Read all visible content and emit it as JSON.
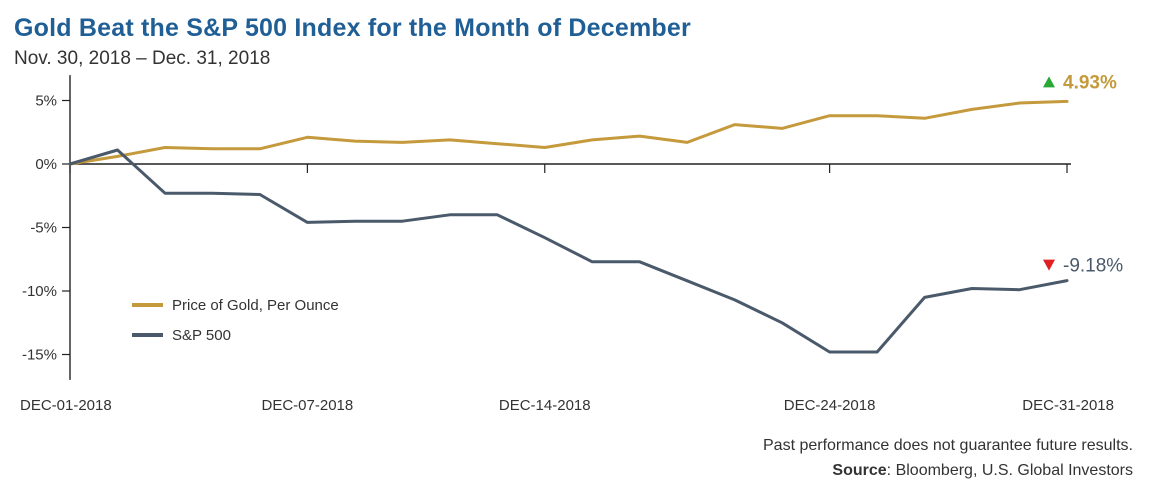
{
  "header": {
    "title": "Gold Beat the S&P 500 Index for the Month of December",
    "subtitle": "Nov. 30, 2018 – Dec. 31, 2018"
  },
  "footer": {
    "disclaimer": "Past performance does not guarantee future results.",
    "source_label": "Source",
    "source_text": ": Bloomberg, U.S. Global Investors"
  },
  "colors": {
    "gold": "#c49a3c",
    "sp500": "#4a5a6a",
    "up_arrow": "#2aa836",
    "down_arrow": "#e02020",
    "axis": "#222222"
  },
  "chart_data": {
    "type": "line",
    "xlabel": "",
    "ylabel": "",
    "ylim": [
      -17,
      7
    ],
    "y_ticks": [
      {
        "value": 5,
        "label": "5%"
      },
      {
        "value": 0,
        "label": "0%"
      },
      {
        "value": -5,
        "label": "-5%"
      },
      {
        "value": -10,
        "label": "-10%"
      },
      {
        "value": -15,
        "label": "-15%"
      }
    ],
    "x_ticks": [
      {
        "index": 0,
        "label": "DEC-01-2018"
      },
      {
        "index": 5,
        "label": "DEC-07-2018"
      },
      {
        "index": 10,
        "label": "DEC-14-2018"
      },
      {
        "index": 16,
        "label": "DEC-24-2018"
      },
      {
        "index": 21,
        "label": "DEC-31-2018"
      }
    ],
    "grid": false,
    "legend_position": "bottom-left",
    "series": [
      {
        "name": "Price of Gold, Per Ounce",
        "color_key": "gold",
        "values": [
          0,
          0.6,
          1.3,
          1.2,
          1.2,
          2.1,
          1.8,
          1.7,
          1.9,
          1.6,
          1.3,
          1.9,
          2.2,
          1.7,
          3.1,
          2.8,
          3.8,
          3.8,
          3.6,
          4.3,
          4.8,
          4.93
        ],
        "end_label": "4.93%",
        "end_direction": "up"
      },
      {
        "name": "S&P 500",
        "color_key": "sp500",
        "values": [
          0,
          1.1,
          -2.3,
          -2.3,
          -2.4,
          -4.6,
          -4.5,
          -4.5,
          -4.0,
          -4.0,
          -5.8,
          -7.7,
          -7.7,
          -9.2,
          -10.7,
          -12.5,
          -14.8,
          -14.8,
          -10.5,
          -9.8,
          -9.9,
          -9.18
        ],
        "end_label": "-9.18%",
        "end_direction": "down"
      }
    ]
  }
}
